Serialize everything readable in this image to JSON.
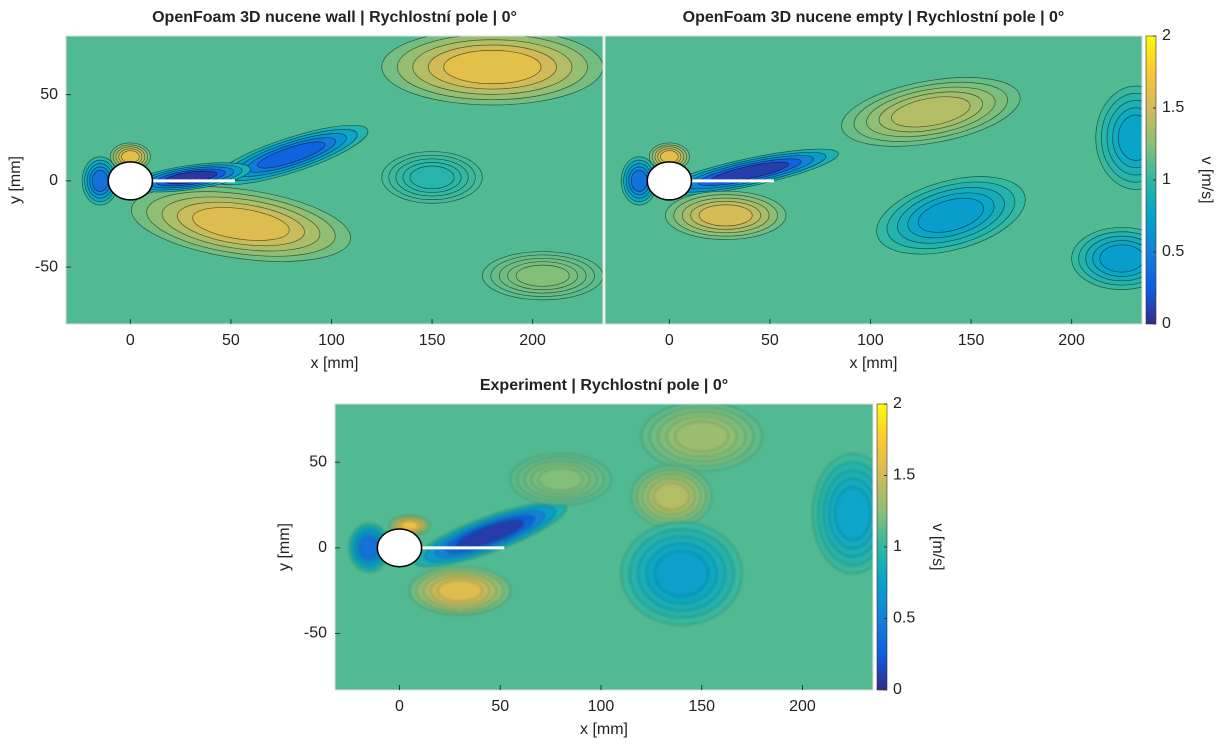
{
  "chart_data": [
    {
      "type": "contour",
      "title": "OpenFoam 3D nucene wall | Rychlostní pole | 0°",
      "xlabel": "x [mm]",
      "ylabel": "y [mm]",
      "xlim": [
        -32,
        235
      ],
      "ylim": [
        -83,
        84
      ],
      "xticks": [
        0,
        50,
        100,
        150,
        200
      ],
      "yticks": [
        -50,
        0,
        50
      ]
    },
    {
      "type": "contour",
      "title": "OpenFoam 3D nucene empty | Rychlostní pole | 0°",
      "xlabel": "x [mm]",
      "xlim": [
        -32,
        235
      ],
      "ylim": [
        -83,
        84
      ],
      "xticks": [
        0,
        50,
        100,
        150,
        200
      ],
      "colorbar": {
        "label": "v [m/s]",
        "clim": [
          0,
          2
        ],
        "ticks": [
          0,
          0.5,
          1,
          1.5,
          2
        ]
      }
    },
    {
      "type": "contour",
      "title": "Experiment | Rychlostní pole | 0°",
      "xlabel": "x [mm]",
      "ylabel": "y [mm]",
      "xlim": [
        -32,
        235
      ],
      "ylim": [
        -83,
        84
      ],
      "xticks": [
        0,
        50,
        100,
        150,
        200
      ],
      "yticks": [
        -50,
        0,
        50
      ],
      "colorbar": {
        "label": "v [m/s]",
        "clim": [
          0,
          2
        ],
        "ticks": [
          0,
          0.5,
          1,
          1.5,
          2
        ]
      }
    }
  ]
}
